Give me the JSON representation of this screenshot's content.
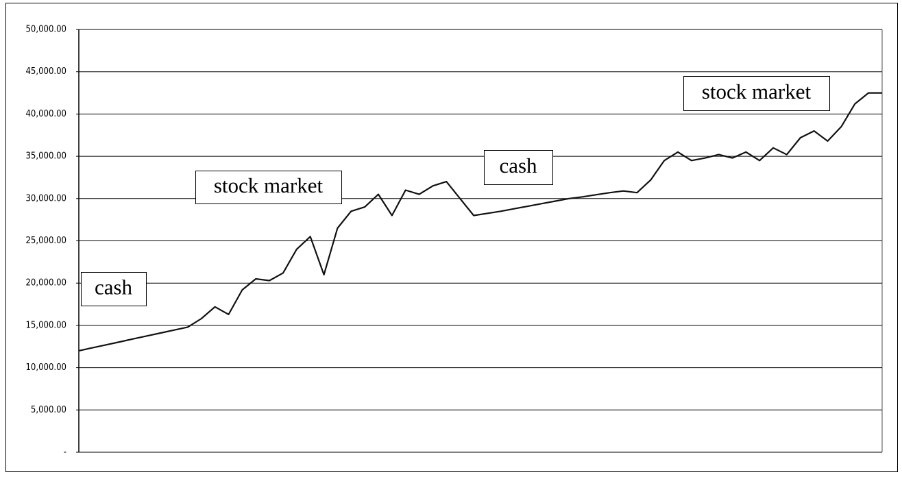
{
  "chart_data": {
    "type": "line",
    "categories": [
      null,
      null,
      null,
      null,
      null,
      null,
      null,
      null,
      null,
      null,
      null,
      null,
      null,
      null,
      null,
      null,
      null,
      null,
      null,
      null,
      null,
      null,
      null,
      null,
      null,
      null,
      null,
      null,
      null,
      null,
      null,
      null,
      null,
      null,
      null,
      null,
      null,
      null,
      null,
      null,
      null,
      null,
      null,
      null,
      null,
      null,
      null,
      null,
      null,
      null,
      null,
      null,
      null,
      null,
      null,
      null,
      null,
      null,
      null,
      null
    ],
    "values": [
      12000,
      12350,
      12700,
      13050,
      13400,
      13750,
      14100,
      14450,
      14800,
      15800,
      17200,
      16300,
      19200,
      20500,
      20300,
      21200,
      24000,
      25500,
      21000,
      26500,
      28500,
      29000,
      30500,
      28000,
      31000,
      30500,
      31500,
      32000,
      30000,
      28000,
      28250,
      28500,
      28800,
      29100,
      29400,
      29700,
      30000,
      30200,
      30450,
      30700,
      30900,
      30700,
      32200,
      34500,
      35500,
      34500,
      34800,
      35200,
      34800,
      35500,
      34500,
      36000,
      35200,
      37200,
      38000,
      36800,
      38500,
      41200,
      42500,
      42500
    ],
    "color": "#111111",
    "ylim": [
      0,
      50000
    ],
    "yticks": [
      {
        "value": 0,
        "label": "-"
      },
      {
        "value": 5000,
        "label": "5,000.00"
      },
      {
        "value": 10000,
        "label": "10,000.00"
      },
      {
        "value": 15000,
        "label": "15,000.00"
      },
      {
        "value": 20000,
        "label": "20,000.00"
      },
      {
        "value": 25000,
        "label": "25,000.00"
      },
      {
        "value": 30000,
        "label": "30,000.00"
      },
      {
        "value": 35000,
        "label": "35,000.00"
      },
      {
        "value": 40000,
        "label": "40,000.00"
      },
      {
        "value": 45000,
        "label": "45,000.00"
      },
      {
        "value": 50000,
        "label": "50,000.00"
      }
    ],
    "grid": true,
    "annotations": [
      "cash",
      "stock market",
      "cash",
      "stock market"
    ]
  }
}
